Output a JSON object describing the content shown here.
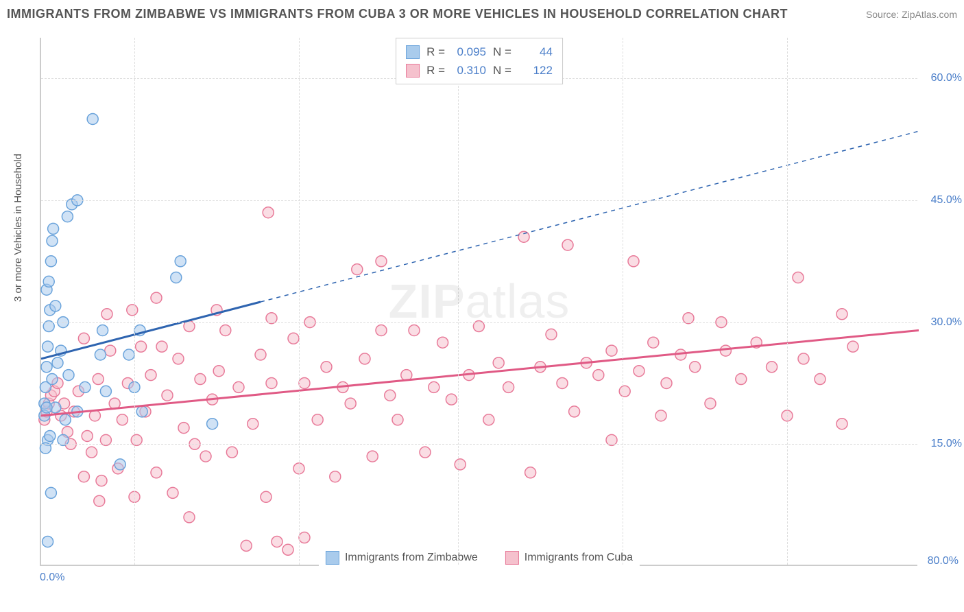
{
  "title": "IMMIGRANTS FROM ZIMBABWE VS IMMIGRANTS FROM CUBA 3 OR MORE VEHICLES IN HOUSEHOLD CORRELATION CHART",
  "source": "Source: ZipAtlas.com",
  "y_axis_label": "3 or more Vehicles in Household",
  "watermark": "ZIPatlas",
  "chart": {
    "type": "scatter",
    "background_color": "#ffffff",
    "grid_color": "#dddddd",
    "axis_color": "#cccccc",
    "tick_label_color": "#4a7ec9",
    "tick_label_fontsize": 16,
    "title_fontsize": 18,
    "title_color": "#555555",
    "xlim": [
      0,
      80
    ],
    "ylim": [
      0,
      65
    ],
    "x_ticks": [
      0,
      80
    ],
    "x_tick_labels": [
      "0.0%",
      "80.0%"
    ],
    "y_ticks": [
      15,
      30,
      45,
      60
    ],
    "y_tick_labels": [
      "15.0%",
      "30.0%",
      "45.0%",
      "60.0%"
    ],
    "v_grid_positions": [
      8.5,
      23.5,
      38,
      53,
      68
    ],
    "marker_radius": 8,
    "marker_opacity": 0.55,
    "line_width": 3,
    "series": [
      {
        "name": "Immigrants from Zimbabwe",
        "color_fill": "#a9cbec",
        "color_stroke": "#6aa3db",
        "line_color": "#2e64b0",
        "R": "0.095",
        "N": "44",
        "regression": {
          "x1": 0,
          "y1": 25.5,
          "x2": 20,
          "y2": 32.5,
          "dash_from_x": 20,
          "dash_to_x": 80,
          "y_at_dash_end": 53.5
        },
        "points": [
          [
            0.3,
            18.5
          ],
          [
            0.3,
            20.0
          ],
          [
            0.4,
            22.0
          ],
          [
            0.5,
            24.5
          ],
          [
            0.6,
            27.0
          ],
          [
            0.7,
            29.5
          ],
          [
            0.8,
            31.5
          ],
          [
            0.5,
            34.0
          ],
          [
            0.7,
            35.0
          ],
          [
            0.9,
            37.5
          ],
          [
            1.0,
            40.0
          ],
          [
            1.1,
            41.5
          ],
          [
            0.6,
            15.5
          ],
          [
            0.8,
            16.0
          ],
          [
            0.4,
            14.5
          ],
          [
            1.5,
            25.0
          ],
          [
            1.8,
            26.5
          ],
          [
            2.0,
            30.0
          ],
          [
            2.4,
            43.0
          ],
          [
            2.8,
            44.5
          ],
          [
            3.3,
            45.0
          ],
          [
            0.9,
            9.0
          ],
          [
            0.6,
            3.0
          ],
          [
            1.3,
            19.5
          ],
          [
            4.7,
            55.0
          ],
          [
            5.4,
            26.0
          ],
          [
            5.6,
            29.0
          ],
          [
            5.9,
            21.5
          ],
          [
            7.2,
            12.5
          ],
          [
            8.0,
            26.0
          ],
          [
            8.5,
            22.0
          ],
          [
            9.0,
            29.0
          ],
          [
            9.2,
            19.0
          ],
          [
            12.3,
            35.5
          ],
          [
            12.7,
            37.5
          ],
          [
            15.6,
            17.5
          ],
          [
            4.0,
            22.0
          ],
          [
            3.3,
            19.0
          ],
          [
            2.2,
            18.0
          ],
          [
            1.0,
            23.0
          ],
          [
            1.3,
            32.0
          ],
          [
            0.5,
            19.5
          ],
          [
            2.0,
            15.5
          ],
          [
            2.5,
            23.5
          ]
        ]
      },
      {
        "name": "Immigrants from Cuba",
        "color_fill": "#f5c1cd",
        "color_stroke": "#e87a99",
        "line_color": "#e05a85",
        "R": "0.310",
        "N": "122",
        "regression": {
          "x1": 0,
          "y1": 18.5,
          "x2": 80,
          "y2": 29.0
        },
        "points": [
          [
            0.3,
            18.0
          ],
          [
            0.5,
            19.0
          ],
          [
            0.7,
            20.0
          ],
          [
            0.9,
            21.0
          ],
          [
            1.2,
            21.5
          ],
          [
            1.5,
            22.5
          ],
          [
            1.8,
            18.5
          ],
          [
            2.1,
            20.0
          ],
          [
            2.4,
            16.5
          ],
          [
            2.7,
            15.0
          ],
          [
            3.0,
            19.0
          ],
          [
            3.4,
            21.5
          ],
          [
            3.9,
            28.0
          ],
          [
            4.2,
            16.0
          ],
          [
            4.6,
            14.0
          ],
          [
            4.9,
            18.5
          ],
          [
            5.2,
            23.0
          ],
          [
            5.5,
            10.5
          ],
          [
            5.9,
            15.5
          ],
          [
            6.3,
            26.5
          ],
          [
            6.7,
            20.0
          ],
          [
            7.0,
            12.0
          ],
          [
            7.4,
            18.0
          ],
          [
            7.9,
            22.5
          ],
          [
            8.3,
            31.5
          ],
          [
            8.7,
            15.5
          ],
          [
            9.1,
            27.0
          ],
          [
            9.5,
            19.0
          ],
          [
            10.0,
            23.5
          ],
          [
            10.5,
            33.0
          ],
          [
            11.0,
            27.0
          ],
          [
            11.5,
            21.0
          ],
          [
            12.0,
            9.0
          ],
          [
            12.5,
            25.5
          ],
          [
            13.0,
            17.0
          ],
          [
            13.5,
            29.5
          ],
          [
            14.0,
            15.0
          ],
          [
            14.5,
            23.0
          ],
          [
            15.0,
            13.5
          ],
          [
            15.6,
            20.5
          ],
          [
            16.2,
            24.0
          ],
          [
            16.8,
            29.0
          ],
          [
            17.4,
            14.0
          ],
          [
            18.0,
            22.0
          ],
          [
            18.7,
            2.5
          ],
          [
            19.3,
            17.5
          ],
          [
            20.0,
            26.0
          ],
          [
            20.5,
            8.5
          ],
          [
            20.7,
            43.5
          ],
          [
            21.0,
            22.5
          ],
          [
            21.5,
            3.0
          ],
          [
            22.5,
            2.0
          ],
          [
            23.0,
            28.0
          ],
          [
            23.5,
            12.0
          ],
          [
            24.0,
            22.5
          ],
          [
            24.0,
            3.5
          ],
          [
            24.5,
            30.0
          ],
          [
            25.2,
            18.0
          ],
          [
            26.0,
            24.5
          ],
          [
            26.8,
            11.0
          ],
          [
            27.5,
            22.0
          ],
          [
            28.2,
            20.0
          ],
          [
            28.8,
            36.5
          ],
          [
            29.5,
            25.5
          ],
          [
            30.2,
            13.5
          ],
          [
            31.0,
            29.0
          ],
          [
            31.0,
            37.5
          ],
          [
            31.8,
            21.0
          ],
          [
            32.5,
            18.0
          ],
          [
            33.3,
            23.5
          ],
          [
            34.0,
            29.0
          ],
          [
            35.0,
            14.0
          ],
          [
            35.8,
            22.0
          ],
          [
            36.6,
            27.5
          ],
          [
            37.4,
            20.5
          ],
          [
            38.2,
            12.5
          ],
          [
            39.0,
            23.5
          ],
          [
            39.9,
            29.5
          ],
          [
            40.8,
            18.0
          ],
          [
            41.7,
            25.0
          ],
          [
            42.6,
            22.0
          ],
          [
            44.0,
            40.5
          ],
          [
            44.6,
            11.5
          ],
          [
            45.5,
            24.5
          ],
          [
            46.5,
            28.5
          ],
          [
            47.5,
            22.5
          ],
          [
            48.0,
            39.5
          ],
          [
            48.6,
            19.0
          ],
          [
            49.7,
            25.0
          ],
          [
            50.8,
            23.5
          ],
          [
            52.0,
            26.5
          ],
          [
            52.0,
            15.5
          ],
          [
            53.2,
            21.5
          ],
          [
            54.0,
            37.5
          ],
          [
            54.5,
            24.0
          ],
          [
            55.8,
            27.5
          ],
          [
            57.0,
            22.5
          ],
          [
            58.3,
            26.0
          ],
          [
            59.0,
            30.5
          ],
          [
            59.6,
            24.5
          ],
          [
            61.0,
            20.0
          ],
          [
            62.0,
            30.0
          ],
          [
            62.4,
            26.5
          ],
          [
            63.8,
            23.0
          ],
          [
            65.2,
            27.5
          ],
          [
            66.6,
            24.5
          ],
          [
            68.0,
            18.5
          ],
          [
            69.0,
            35.5
          ],
          [
            69.5,
            25.5
          ],
          [
            71.0,
            23.0
          ],
          [
            73.0,
            31.0
          ],
          [
            73.0,
            17.5
          ],
          [
            74.0,
            27.0
          ],
          [
            3.9,
            11.0
          ],
          [
            5.3,
            8.0
          ],
          [
            6.0,
            31.0
          ],
          [
            8.5,
            8.5
          ],
          [
            10.5,
            11.5
          ],
          [
            13.5,
            6.0
          ],
          [
            16.0,
            31.5
          ],
          [
            21.0,
            30.5
          ],
          [
            56.5,
            18.5
          ]
        ]
      }
    ]
  },
  "legend_top_labels": {
    "R": "R =",
    "N": "N ="
  },
  "legend_bottom": {
    "series1_label": "Immigrants from Zimbabwe",
    "series2_label": "Immigrants from Cuba"
  }
}
